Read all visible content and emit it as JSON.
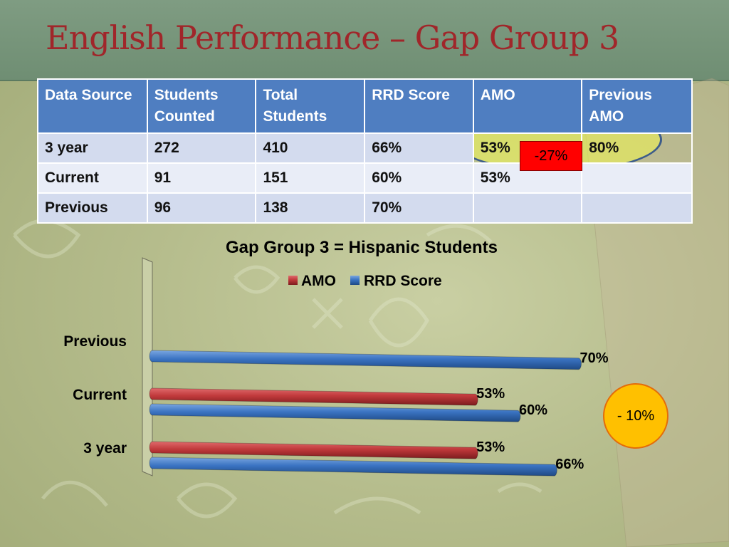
{
  "slide": {
    "title": "English Performance – Gap Group 3",
    "callout_table": "-27%",
    "callout_chart": "- 10%"
  },
  "table": {
    "headers": [
      "Data Source",
      "Students Counted",
      "Total Students",
      "RRD Score",
      "AMO",
      "Previous AMO"
    ],
    "rows": [
      [
        "3 year",
        "272",
        "410",
        "66%",
        "53%",
        "80%"
      ],
      [
        "Current",
        "91",
        "151",
        "60%",
        "53%",
        ""
      ],
      [
        "Previous",
        "96",
        "138",
        "70%",
        "",
        ""
      ]
    ]
  },
  "colors": {
    "amo": "#c0393b",
    "rrd": "#3a73c2",
    "header": "#4f7ec1",
    "title": "#a0262a"
  },
  "chart_data": {
    "type": "bar",
    "orientation": "horizontal",
    "title": "Gap Group 3 = Hispanic Students",
    "categories": [
      "3 year",
      "Current",
      "Previous"
    ],
    "series": [
      {
        "name": "AMO",
        "values": [
          53,
          53,
          null
        ]
      },
      {
        "name": "RRD Score",
        "values": [
          66,
          60,
          70
        ]
      }
    ],
    "value_labels": {
      "AMO": [
        "53%",
        "53%",
        ""
      ],
      "RRD Score": [
        "66%",
        "60%",
        "70%"
      ]
    },
    "xlim": [
      0,
      100
    ],
    "legend": "top",
    "grid": false
  }
}
